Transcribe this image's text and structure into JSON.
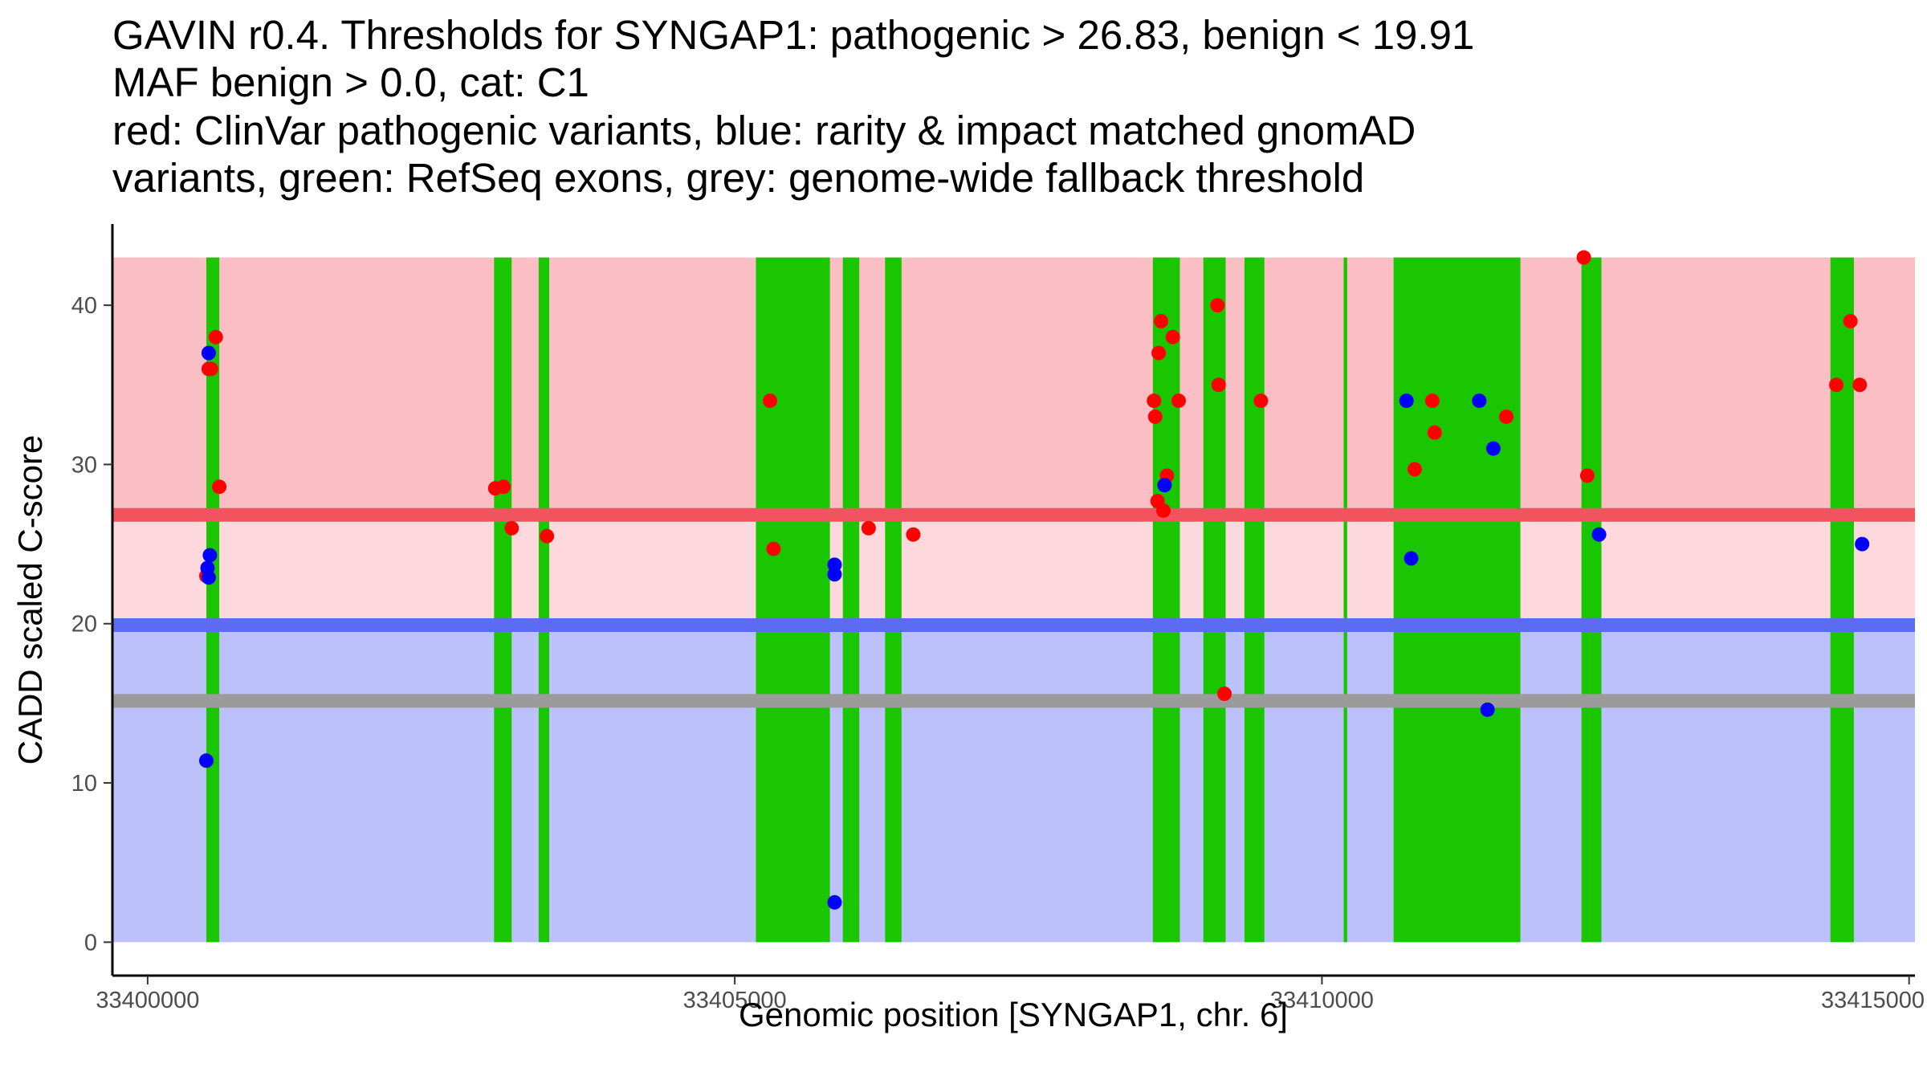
{
  "chart_data": {
    "type": "scatter",
    "title_lines": [
      "GAVIN r0.4. Thresholds for SYNGAP1: pathogenic > 26.83, benign < 19.91",
      "MAF benign > 0.0, cat: C1",
      "red: ClinVar pathogenic variants, blue: rarity & impact matched gnomAD",
      "variants, green: RefSeq exons, grey: genome-wide fallback threshold"
    ],
    "xlabel": "Genomic position [SYNGAP1, chr. 6]",
    "ylabel": "CADD scaled C-score",
    "xlim": [
      33399700,
      33415050
    ],
    "ylim": [
      -2.1,
      45.1
    ],
    "x_ticks": [
      33400000,
      33405000,
      33410000,
      33415000
    ],
    "x_tick_labels": [
      "33400000",
      "33405000",
      "33410000",
      "33415000"
    ],
    "y_ticks": [
      0,
      10,
      20,
      30,
      40
    ],
    "y_tick_labels": [
      "0",
      "10",
      "20",
      "30",
      "40"
    ],
    "thresholds": {
      "pathogenic": 26.83,
      "benign": 19.91,
      "fallback": 15.15,
      "max_score": 43
    },
    "colors": {
      "pathogenic_zone": "#fbbec5",
      "intermediate_zone": "#fdd9dd",
      "benign_zone": "#bdc1fb",
      "pathogenic_line": "#f2545f",
      "benign_line": "#5b6bf2",
      "fallback_line": "#9b9b9b",
      "exon": "#1ac600",
      "pathogenic_point": "#ff0000",
      "benign_point": "#0000ff"
    },
    "exons": [
      [
        33400500,
        33400610
      ],
      [
        33402950,
        33403100
      ],
      [
        33403330,
        33403420
      ],
      [
        33405180,
        33405810
      ],
      [
        33405920,
        33406060
      ],
      [
        33406280,
        33406420
      ],
      [
        33408560,
        33408790
      ],
      [
        33408990,
        33409180
      ],
      [
        33409340,
        33409510
      ],
      [
        33410185,
        33410215
      ],
      [
        33410610,
        33411690
      ],
      [
        33412210,
        33412380
      ],
      [
        33414330,
        33414530
      ]
    ],
    "series": [
      {
        "name": "ClinVar pathogenic variants",
        "color_key": "pathogenic_point",
        "points": [
          [
            33400580,
            38
          ],
          [
            33400520,
            36
          ],
          [
            33400540,
            36
          ],
          [
            33400610,
            28.6
          ],
          [
            33400500,
            23
          ],
          [
            33402960,
            28.5
          ],
          [
            33403030,
            28.6
          ],
          [
            33403100,
            26
          ],
          [
            33403400,
            25.5
          ],
          [
            33405300,
            34
          ],
          [
            33405330,
            24.7
          ],
          [
            33406140,
            26
          ],
          [
            33406520,
            25.6
          ],
          [
            33408630,
            39
          ],
          [
            33408610,
            37
          ],
          [
            33408730,
            38
          ],
          [
            33408570,
            34
          ],
          [
            33408780,
            34
          ],
          [
            33408580,
            33
          ],
          [
            33408680,
            29.3
          ],
          [
            33408600,
            27.7
          ],
          [
            33408650,
            27.1
          ],
          [
            33409110,
            40
          ],
          [
            33409120,
            35
          ],
          [
            33409170,
            15.6
          ],
          [
            33409480,
            34
          ],
          [
            33410790,
            29.7
          ],
          [
            33410940,
            34
          ],
          [
            33410960,
            32
          ],
          [
            33411570,
            33
          ],
          [
            33412230,
            43
          ],
          [
            33412260,
            29.3
          ],
          [
            33414380,
            35
          ],
          [
            33414500,
            39
          ],
          [
            33414580,
            35
          ]
        ]
      },
      {
        "name": "rarity & impact matched gnomAD variants",
        "color_key": "benign_point",
        "points": [
          [
            33400520,
            37
          ],
          [
            33400530,
            24.3
          ],
          [
            33400510,
            23.5
          ],
          [
            33400520,
            22.9
          ],
          [
            33400500,
            11.4
          ],
          [
            33405850,
            23.7
          ],
          [
            33405850,
            23.1
          ],
          [
            33405850,
            2.5
          ],
          [
            33408660,
            28.7
          ],
          [
            33410720,
            34
          ],
          [
            33410760,
            24.1
          ],
          [
            33411340,
            34
          ],
          [
            33411410,
            14.6
          ],
          [
            33411460,
            31
          ],
          [
            33412360,
            25.6
          ],
          [
            33414600,
            25
          ]
        ]
      }
    ]
  }
}
